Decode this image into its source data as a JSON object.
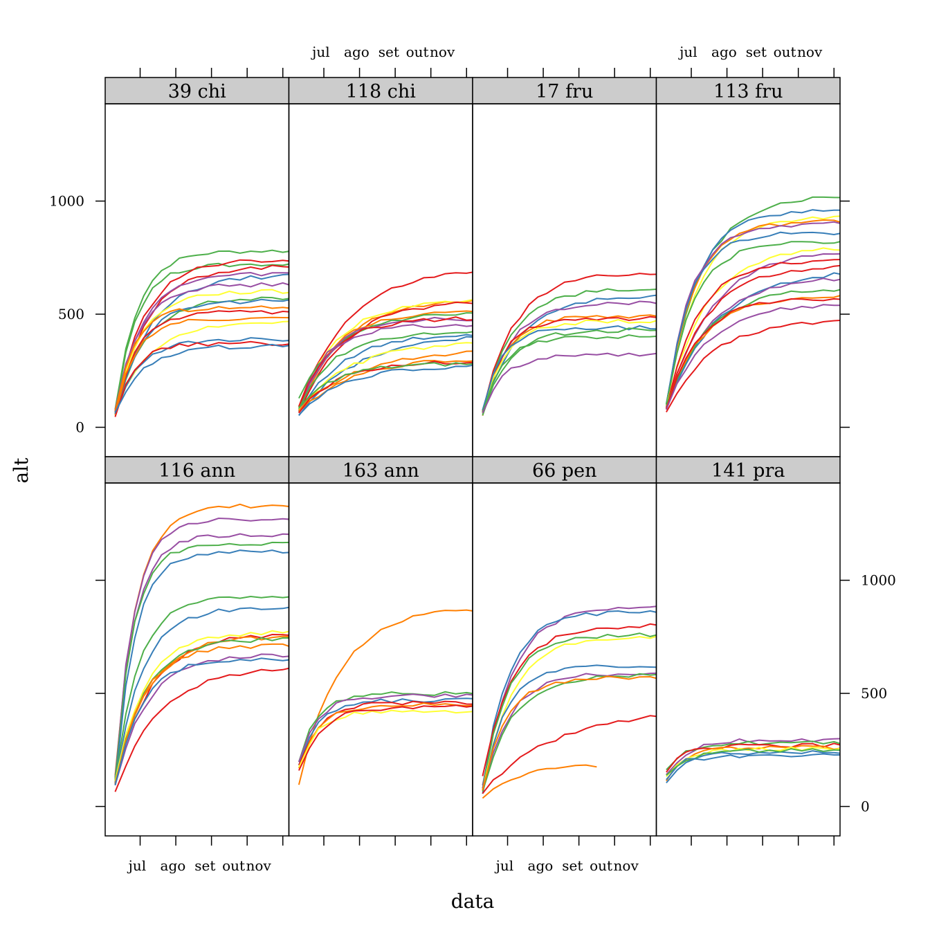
{
  "chart_data": {
    "type": "line",
    "layout": "lattice-trellis 4 columns x 2 rows",
    "xlabel": "data",
    "ylabel": "alt",
    "x_tick_labels": [
      "jul",
      "ago",
      "set",
      "out",
      "nov"
    ],
    "y_ticks": [
      0,
      500,
      1000
    ],
    "ylim": [
      -130,
      1430
    ],
    "xlim": [
      0,
      5.15
    ],
    "grid": false,
    "legend": "none",
    "series_colors": [
      "#E41A1C",
      "#377EB8",
      "#4DAF4A",
      "#984EA3",
      "#FF7F00",
      "#FFFF33"
    ],
    "x_samples": [
      0,
      0.3,
      0.55,
      0.8,
      1.05,
      1.3,
      1.55,
      1.8,
      2.05,
      2.3,
      2.6,
      2.9,
      3.2,
      3.5,
      3.8,
      4.1,
      4.4,
      4.7,
      5.0
    ],
    "panels": [
      {
        "label": "39 chi",
        "row": 0,
        "col": 0,
        "curves": [
          {
            "color": "#4DAF4A",
            "start": 80,
            "end": 780,
            "k": 1.6
          },
          {
            "color": "#4DAF4A",
            "start": 75,
            "end": 720,
            "k": 1.7
          },
          {
            "color": "#E41A1C",
            "start": 70,
            "end": 740,
            "k": 1.2
          },
          {
            "color": "#E41A1C",
            "start": 65,
            "end": 710,
            "k": 1.1
          },
          {
            "color": "#984EA3",
            "start": 70,
            "end": 680,
            "k": 1.3
          },
          {
            "color": "#377EB8",
            "start": 60,
            "end": 670,
            "k": 1.0
          },
          {
            "color": "#984EA3",
            "start": 75,
            "end": 630,
            "k": 1.5
          },
          {
            "color": "#FFFF33",
            "start": 60,
            "end": 600,
            "k": 1.4
          },
          {
            "color": "#4DAF4A",
            "start": 55,
            "end": 570,
            "k": 1.2
          },
          {
            "color": "#377EB8",
            "start": 60,
            "end": 560,
            "k": 1.3
          },
          {
            "color": "#FF7F00",
            "start": 70,
            "end": 530,
            "k": 1.9
          },
          {
            "color": "#E41A1C",
            "start": 65,
            "end": 510,
            "k": 1.6
          },
          {
            "color": "#FF7F00",
            "start": 50,
            "end": 480,
            "k": 1.8
          },
          {
            "color": "#FFFF33",
            "start": 60,
            "end": 460,
            "k": 1.1
          },
          {
            "color": "#377EB8",
            "start": 55,
            "end": 390,
            "k": 1.5
          },
          {
            "color": "#E41A1C",
            "start": 50,
            "end": 370,
            "k": 1.9
          },
          {
            "color": "#377EB8",
            "start": 60,
            "end": 360,
            "k": 1.3
          }
        ]
      },
      {
        "label": "118 chi",
        "row": 0,
        "col": 1,
        "curves": [
          {
            "color": "#E41A1C",
            "start": 95,
            "end": 690,
            "k": 0.7
          },
          {
            "color": "#FF7F00",
            "start": 70,
            "end": 560,
            "k": 0.8
          },
          {
            "color": "#FFFF33",
            "start": 85,
            "end": 560,
            "k": 0.9
          },
          {
            "color": "#E41A1C",
            "start": 60,
            "end": 550,
            "k": 0.8
          },
          {
            "color": "#FF7F00",
            "start": 90,
            "end": 510,
            "k": 1.0
          },
          {
            "color": "#4DAF4A",
            "start": 120,
            "end": 500,
            "k": 0.9
          },
          {
            "color": "#984EA3",
            "start": 75,
            "end": 480,
            "k": 1.2
          },
          {
            "color": "#E41A1C",
            "start": 80,
            "end": 480,
            "k": 1.1
          },
          {
            "color": "#984EA3",
            "start": 65,
            "end": 450,
            "k": 1.3
          },
          {
            "color": "#4DAF4A",
            "start": 90,
            "end": 420,
            "k": 1.0
          },
          {
            "color": "#377EB8",
            "start": 70,
            "end": 410,
            "k": 0.8
          },
          {
            "color": "#377EB8",
            "start": 60,
            "end": 400,
            "k": 0.6
          },
          {
            "color": "#FFFF33",
            "start": 75,
            "end": 370,
            "k": 0.7
          },
          {
            "color": "#FF7F00",
            "start": 80,
            "end": 330,
            "k": 0.6
          },
          {
            "color": "#FF7F00",
            "start": 65,
            "end": 300,
            "k": 0.7
          },
          {
            "color": "#E41A1C",
            "start": 70,
            "end": 290,
            "k": 0.9
          },
          {
            "color": "#4DAF4A",
            "start": 85,
            "end": 280,
            "k": 1.0
          },
          {
            "color": "#377EB8",
            "start": 60,
            "end": 270,
            "k": 0.8
          }
        ]
      },
      {
        "label": "17 fru",
        "row": 0,
        "col": 2,
        "curves": [
          {
            "color": "#E41A1C",
            "start": 75,
            "end": 680,
            "k": 1.1
          },
          {
            "color": "#4DAF4A",
            "start": 70,
            "end": 610,
            "k": 1.2
          },
          {
            "color": "#377EB8",
            "start": 65,
            "end": 580,
            "k": 1.0
          },
          {
            "color": "#984EA3",
            "start": 60,
            "end": 550,
            "k": 1.3
          },
          {
            "color": "#FF7F00",
            "start": 55,
            "end": 490,
            "k": 1.6
          },
          {
            "color": "#E41A1C",
            "start": 60,
            "end": 480,
            "k": 1.7
          },
          {
            "color": "#FFFF33",
            "start": 65,
            "end": 470,
            "k": 1.5
          },
          {
            "color": "#377EB8",
            "start": 70,
            "end": 440,
            "k": 1.9
          },
          {
            "color": "#4DAF4A",
            "start": 55,
            "end": 430,
            "k": 1.4
          },
          {
            "color": "#4DAF4A",
            "start": 60,
            "end": 400,
            "k": 1.8
          },
          {
            "color": "#984EA3",
            "start": 65,
            "end": 320,
            "k": 1.7
          }
        ]
      },
      {
        "label": "113 fru",
        "row": 0,
        "col": 3,
        "curves": [
          {
            "color": "#4DAF4A",
            "start": 110,
            "end": 1020,
            "k": 1.0
          },
          {
            "color": "#377EB8",
            "start": 100,
            "end": 960,
            "k": 1.2
          },
          {
            "color": "#FFFF33",
            "start": 95,
            "end": 930,
            "k": 1.1
          },
          {
            "color": "#FF7F00",
            "start": 90,
            "end": 910,
            "k": 1.3
          },
          {
            "color": "#984EA3",
            "start": 100,
            "end": 900,
            "k": 1.4
          },
          {
            "color": "#377EB8",
            "start": 95,
            "end": 860,
            "k": 1.5
          },
          {
            "color": "#4DAF4A",
            "start": 105,
            "end": 820,
            "k": 1.3
          },
          {
            "color": "#FFFF33",
            "start": 90,
            "end": 790,
            "k": 0.9
          },
          {
            "color": "#984EA3",
            "start": 85,
            "end": 770,
            "k": 0.8
          },
          {
            "color": "#E41A1C",
            "start": 80,
            "end": 740,
            "k": 1.1
          },
          {
            "color": "#E41A1C",
            "start": 90,
            "end": 710,
            "k": 0.9
          },
          {
            "color": "#377EB8",
            "start": 85,
            "end": 680,
            "k": 0.7
          },
          {
            "color": "#984EA3",
            "start": 90,
            "end": 660,
            "k": 0.8
          },
          {
            "color": "#4DAF4A",
            "start": 95,
            "end": 610,
            "k": 0.9
          },
          {
            "color": "#FF7F00",
            "start": 85,
            "end": 580,
            "k": 1.0
          },
          {
            "color": "#E41A1C",
            "start": 75,
            "end": 570,
            "k": 1.1
          },
          {
            "color": "#984EA3",
            "start": 80,
            "end": 540,
            "k": 0.9
          },
          {
            "color": "#E41A1C",
            "start": 60,
            "end": 470,
            "k": 0.8
          }
        ]
      },
      {
        "label": "116 ann",
        "row": 1,
        "col": 0,
        "curves": [
          {
            "color": "#FF7F00",
            "start": 130,
            "end": 1330,
            "k": 1.7
          },
          {
            "color": "#984EA3",
            "start": 125,
            "end": 1270,
            "k": 1.9
          },
          {
            "color": "#984EA3",
            "start": 120,
            "end": 1200,
            "k": 1.9
          },
          {
            "color": "#4DAF4A",
            "start": 115,
            "end": 1160,
            "k": 2.0
          },
          {
            "color": "#377EB8",
            "start": 110,
            "end": 1130,
            "k": 1.8
          },
          {
            "color": "#4DAF4A",
            "start": 120,
            "end": 930,
            "k": 1.5
          },
          {
            "color": "#377EB8",
            "start": 115,
            "end": 880,
            "k": 1.3
          },
          {
            "color": "#FFFF33",
            "start": 110,
            "end": 770,
            "k": 1.2
          },
          {
            "color": "#E41A1C",
            "start": 110,
            "end": 760,
            "k": 1.0
          },
          {
            "color": "#FF7F00",
            "start": 100,
            "end": 750,
            "k": 1.1
          },
          {
            "color": "#4DAF4A",
            "start": 105,
            "end": 740,
            "k": 1.2
          },
          {
            "color": "#FF7F00",
            "start": 95,
            "end": 710,
            "k": 1.3
          },
          {
            "color": "#984EA3",
            "start": 100,
            "end": 670,
            "k": 1.1
          },
          {
            "color": "#377EB8",
            "start": 90,
            "end": 650,
            "k": 1.4
          },
          {
            "color": "#E41A1C",
            "start": 70,
            "end": 610,
            "k": 0.8
          }
        ]
      },
      {
        "label": "163 ann",
        "row": 1,
        "col": 1,
        "curves": [
          {
            "color": "#FF7F00",
            "start": 90,
            "end": 870,
            "k": 0.9
          },
          {
            "color": "#4DAF4A",
            "start": 200,
            "end": 500,
            "k": 2.0
          },
          {
            "color": "#984EA3",
            "start": 190,
            "end": 490,
            "k": 1.9
          },
          {
            "color": "#377EB8",
            "start": 185,
            "end": 470,
            "k": 1.8
          },
          {
            "color": "#E41A1C",
            "start": 175,
            "end": 460,
            "k": 1.7
          },
          {
            "color": "#FF7F00",
            "start": 170,
            "end": 450,
            "k": 1.8
          },
          {
            "color": "#FFFF33",
            "start": 165,
            "end": 420,
            "k": 2.0
          },
          {
            "color": "#E41A1C",
            "start": 160,
            "end": 440,
            "k": 1.6
          }
        ]
      },
      {
        "label": "66 pen",
        "row": 1,
        "col": 2,
        "curves": [
          {
            "color": "#984EA3",
            "start": 90,
            "end": 880,
            "k": 1.2
          },
          {
            "color": "#377EB8",
            "start": 80,
            "end": 860,
            "k": 1.4
          },
          {
            "color": "#E41A1C",
            "start": 130,
            "end": 800,
            "k": 1.2
          },
          {
            "color": "#4DAF4A",
            "start": 85,
            "end": 760,
            "k": 1.4
          },
          {
            "color": "#FFFF33",
            "start": 70,
            "end": 750,
            "k": 1.2
          },
          {
            "color": "#377EB8",
            "start": 60,
            "end": 620,
            "k": 1.6
          },
          {
            "color": "#984EA3",
            "start": 75,
            "end": 590,
            "k": 1.3
          },
          {
            "color": "#4DAF4A",
            "start": 70,
            "end": 580,
            "k": 1.2
          },
          {
            "color": "#FF7F00",
            "start": 65,
            "end": 570,
            "k": 1.5
          },
          {
            "color": "#E41A1C",
            "start": 60,
            "end": 400,
            "k": 0.5
          },
          {
            "color": "#FF7F00",
            "start": 30,
            "end": 180,
            "k": 1.1,
            "xmax": 3.2
          }
        ]
      },
      {
        "label": "141 pra",
        "row": 1,
        "col": 3,
        "curves": [
          {
            "color": "#984EA3",
            "start": 140,
            "end": 295,
            "k": 1.6
          },
          {
            "color": "#4DAF4A",
            "start": 170,
            "end": 280,
            "k": 2.0
          },
          {
            "color": "#E41A1C",
            "start": 150,
            "end": 270,
            "k": 2.1
          },
          {
            "color": "#FF7F00",
            "start": 120,
            "end": 260,
            "k": 1.9
          },
          {
            "color": "#FFFF33",
            "start": 130,
            "end": 255,
            "k": 1.8
          },
          {
            "color": "#377EB8",
            "start": 125,
            "end": 240,
            "k": 2.0
          },
          {
            "color": "#4DAF4A",
            "start": 135,
            "end": 250,
            "k": 1.7
          },
          {
            "color": "#377EB8",
            "start": 110,
            "end": 225,
            "k": 2.2
          }
        ]
      }
    ]
  }
}
